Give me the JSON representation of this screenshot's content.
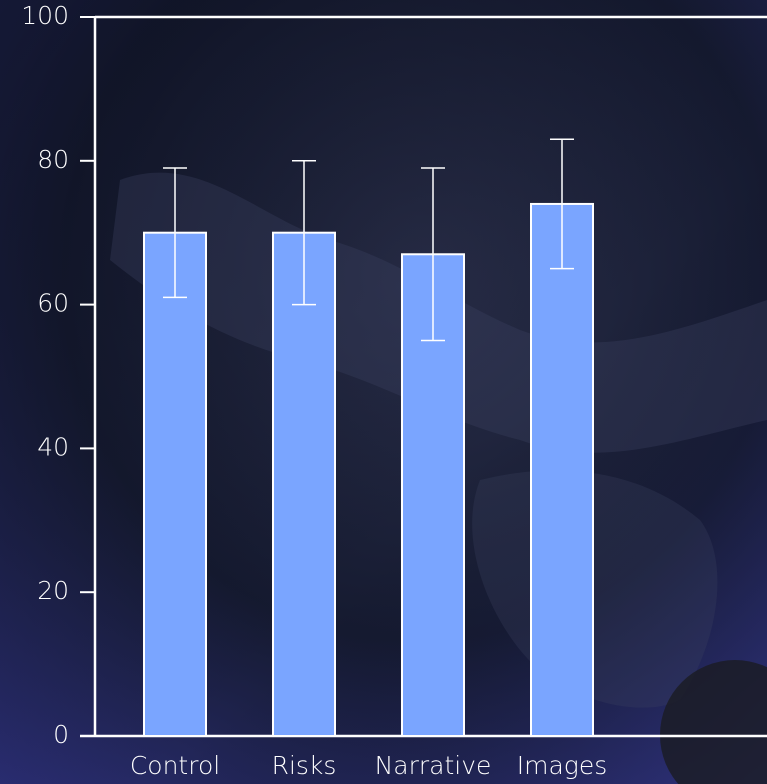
{
  "chart_data": {
    "type": "bar",
    "categories": [
      "Control",
      "Risks",
      "Narrative",
      "Images"
    ],
    "values": [
      70,
      70,
      67,
      74
    ],
    "errors": [
      9,
      10,
      12,
      9
    ],
    "color": "#7aa5ff",
    "error_color": "#ffffff",
    "ylim": [
      0,
      100
    ],
    "yticks": [
      0,
      20,
      40,
      60,
      80,
      100
    ],
    "grid": false
  }
}
